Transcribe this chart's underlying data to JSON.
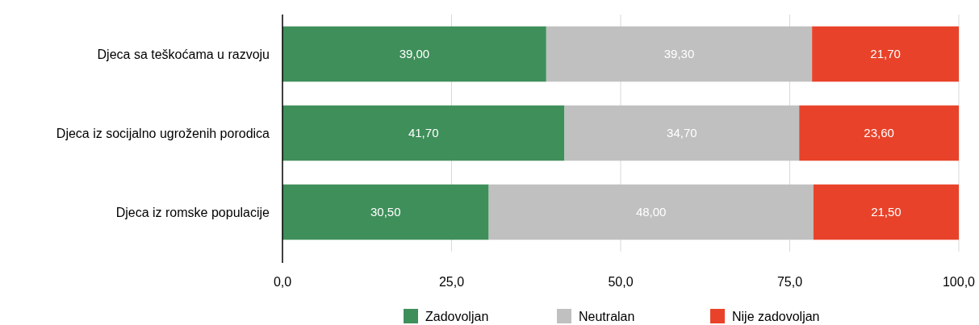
{
  "chart_data": {
    "type": "bar",
    "orientation": "horizontal",
    "stacked": true,
    "categories": [
      "Djeca sa teškoćama u razvoju",
      "Djeca iz socijalno ugroženih porodica",
      "Djeca iz romske populacije"
    ],
    "series": [
      {
        "name": "Zadovoljan",
        "color": "#3f8f5a",
        "values": [
          39.0,
          41.7,
          30.5
        ],
        "value_labels": [
          "39,00",
          "41,70",
          "30,50"
        ]
      },
      {
        "name": "Neutralan",
        "color": "#c0c0c0",
        "values": [
          39.3,
          34.7,
          48.0
        ],
        "value_labels": [
          "39,30",
          "34,70",
          "48,00"
        ]
      },
      {
        "name": "Nije zadovoljan",
        "color": "#e8432a",
        "values": [
          21.7,
          23.6,
          21.5
        ],
        "value_labels": [
          "21,70",
          "23,60",
          "21,50"
        ]
      }
    ],
    "xlim": [
      0,
      100
    ],
    "xticks": [
      {
        "value": 0,
        "label": "0,0"
      },
      {
        "value": 25,
        "label": "25,0"
      },
      {
        "value": 50,
        "label": "50,0"
      },
      {
        "value": 75,
        "label": "75,0"
      },
      {
        "value": 100,
        "label": "100,0"
      }
    ],
    "grid": "x",
    "legend": "bottom"
  }
}
